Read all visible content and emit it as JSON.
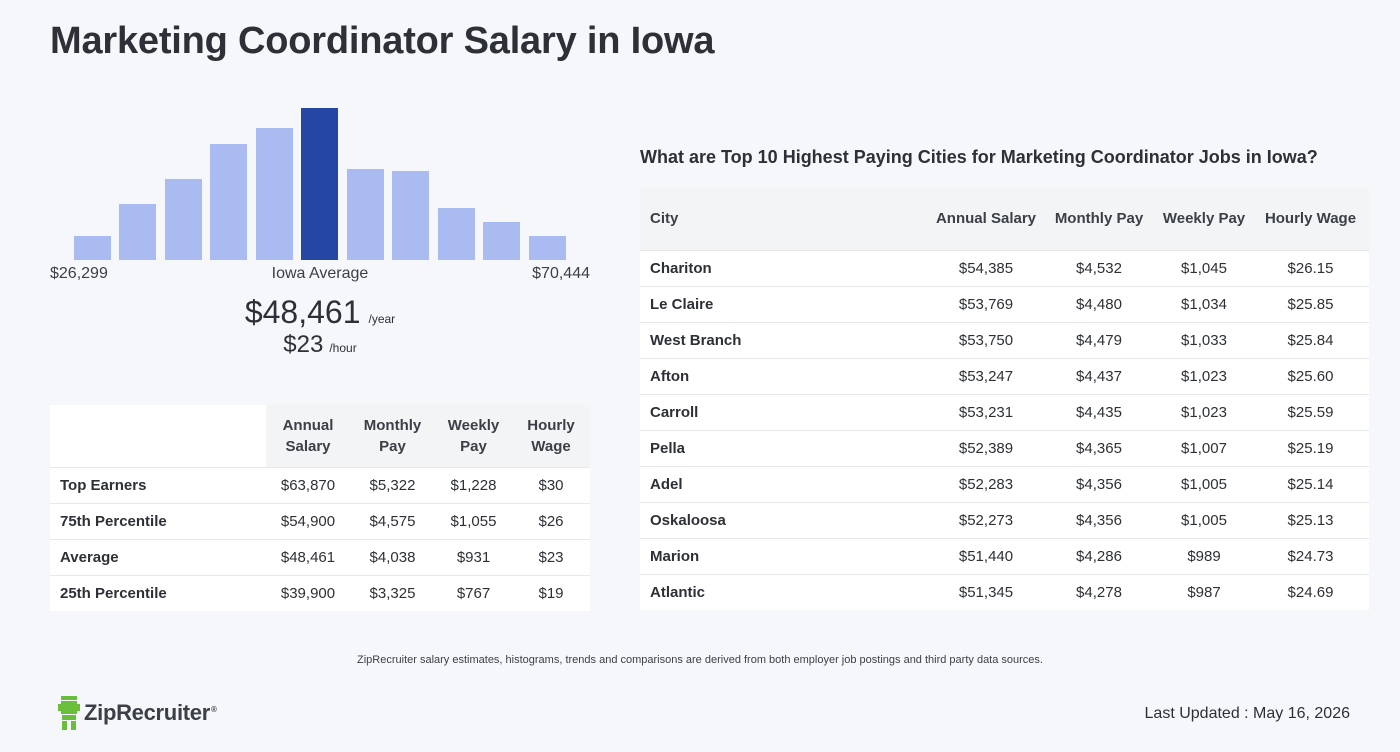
{
  "page": {
    "title": "Marketing Coordinator Salary in Iowa"
  },
  "chart_data": {
    "type": "bar",
    "values": [
      24,
      56,
      81,
      116,
      132,
      152,
      91,
      89,
      52,
      38,
      24
    ],
    "highlight_index": 5,
    "colors": {
      "bar": "#aabbf2",
      "highlight": "#2547a3"
    },
    "min_label": "$26,299",
    "avg_label": "Iowa Average",
    "max_label": "$70,444"
  },
  "summary": {
    "annual": "$48,461",
    "annual_unit": "/year",
    "hourly": "$23",
    "hourly_unit": "/hour"
  },
  "percentile_table": {
    "headers": [
      "Annual Salary",
      "Monthly Pay",
      "Weekly Pay",
      "Hourly Wage"
    ],
    "rows": [
      {
        "label": "Top Earners",
        "values": [
          "$63,870",
          "$5,322",
          "$1,228",
          "$30"
        ]
      },
      {
        "label": "75th Percentile",
        "values": [
          "$54,900",
          "$4,575",
          "$1,055",
          "$26"
        ]
      },
      {
        "label": "Average",
        "values": [
          "$48,461",
          "$4,038",
          "$931",
          "$23"
        ]
      },
      {
        "label": "25th Percentile",
        "values": [
          "$39,900",
          "$3,325",
          "$767",
          "$19"
        ]
      }
    ]
  },
  "cities": {
    "title": "What are Top 10 Highest Paying Cities for Marketing Coordinator Jobs in Iowa?",
    "headers": [
      "City",
      "Annual Salary",
      "Monthly Pay",
      "Weekly Pay",
      "Hourly Wage"
    ],
    "rows": [
      {
        "city": "Chariton",
        "values": [
          "$54,385",
          "$4,532",
          "$1,045",
          "$26.15"
        ]
      },
      {
        "city": "Le Claire",
        "values": [
          "$53,769",
          "$4,480",
          "$1,034",
          "$25.85"
        ]
      },
      {
        "city": "West Branch",
        "values": [
          "$53,750",
          "$4,479",
          "$1,033",
          "$25.84"
        ]
      },
      {
        "city": "Afton",
        "values": [
          "$53,247",
          "$4,437",
          "$1,023",
          "$25.60"
        ]
      },
      {
        "city": "Carroll",
        "values": [
          "$53,231",
          "$4,435",
          "$1,023",
          "$25.59"
        ]
      },
      {
        "city": "Pella",
        "values": [
          "$52,389",
          "$4,365",
          "$1,007",
          "$25.19"
        ]
      },
      {
        "city": "Adel",
        "values": [
          "$52,283",
          "$4,356",
          "$1,005",
          "$25.14"
        ]
      },
      {
        "city": "Oskaloosa",
        "values": [
          "$52,273",
          "$4,356",
          "$1,005",
          "$25.13"
        ]
      },
      {
        "city": "Marion",
        "values": [
          "$51,440",
          "$4,286",
          "$989",
          "$24.73"
        ]
      },
      {
        "city": "Atlantic",
        "values": [
          "$51,345",
          "$4,278",
          "$987",
          "$24.69"
        ]
      }
    ]
  },
  "footer": {
    "disclaimer": "ZipRecruiter salary estimates, histograms, trends and comparisons are derived from both employer job postings and third party data sources.",
    "logo_text": "ZipRecruiter",
    "logo_mark": "®",
    "logo_color": "#6abf3a",
    "last_updated": "Last Updated : May 16, 2026"
  }
}
